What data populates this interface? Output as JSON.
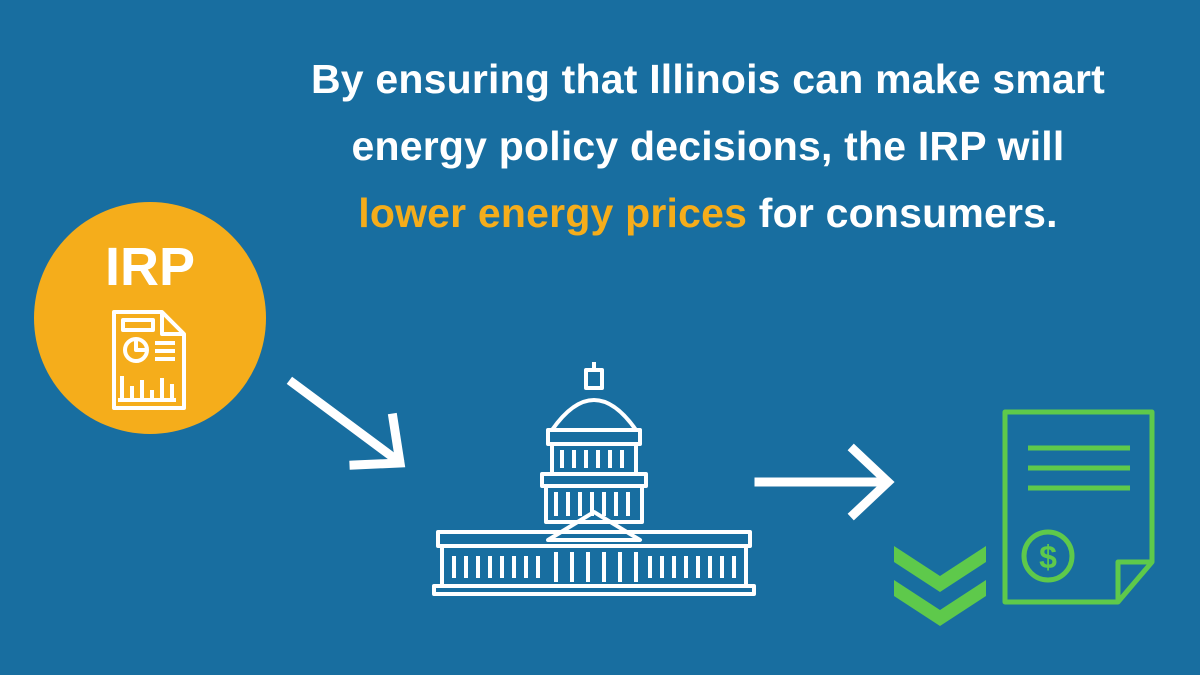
{
  "headline": {
    "lines": [
      "By ensuring that Illinois can make smart",
      "energy policy decisions, the IRP will"
    ],
    "highlight": "lower energy prices",
    "tail": "for consumers."
  },
  "circle_label": "IRP",
  "bill_symbol": "$"
}
